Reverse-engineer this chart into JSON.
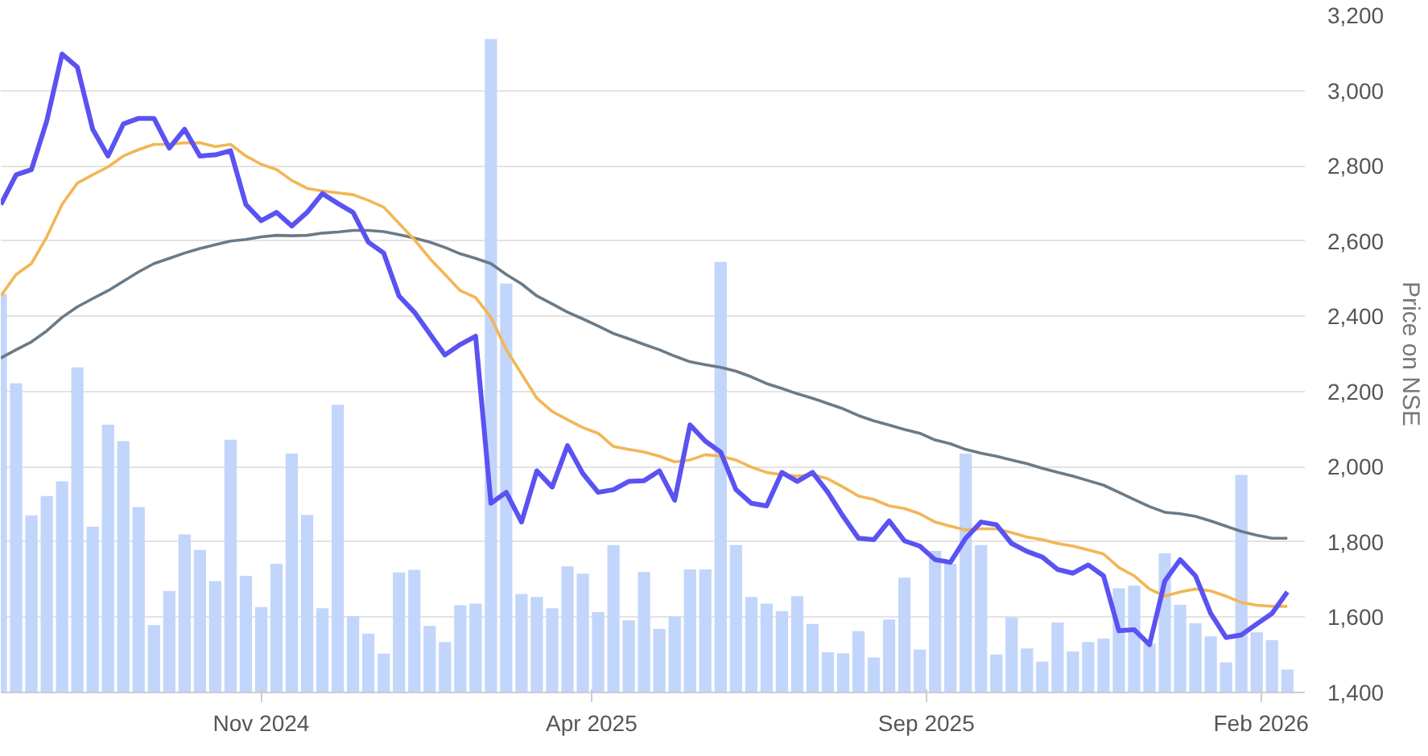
{
  "chart_data": {
    "type": "line",
    "ylabel": "Price on NSE",
    "grid": "y",
    "marker": "none",
    "xlim": [
      "2024-07-05",
      "2026-02-21"
    ],
    "xticks": [
      {
        "value": "2024-11-01",
        "label": "Nov 2024"
      },
      {
        "value": "2025-04-01",
        "label": "Apr 2025"
      },
      {
        "value": "2025-09-01",
        "label": "Sep 2025"
      },
      {
        "value": "2026-02-01",
        "label": "Feb 2026"
      }
    ],
    "ylim": [
      1400,
      3200
    ],
    "yticks": [
      {
        "value": 1400,
        "label": "1,400"
      },
      {
        "value": 1600,
        "label": "1,600"
      },
      {
        "value": 1800,
        "label": "1,800"
      },
      {
        "value": 2000,
        "label": "2,000"
      },
      {
        "value": 2200,
        "label": "2,200"
      },
      {
        "value": 2400,
        "label": "2,400"
      },
      {
        "value": 2600,
        "label": "2,600"
      },
      {
        "value": 2800,
        "label": "2,800"
      },
      {
        "value": 3000,
        "label": "3,000"
      },
      {
        "value": 3200,
        "label": "3,200"
      }
    ],
    "x": [
      "2024-07-05",
      "2024-07-12",
      "2024-07-19",
      "2024-07-26",
      "2024-08-02",
      "2024-08-09",
      "2024-08-16",
      "2024-08-23",
      "2024-08-30",
      "2024-09-06",
      "2024-09-13",
      "2024-09-20",
      "2024-09-27",
      "2024-10-04",
      "2024-10-11",
      "2024-10-18",
      "2024-10-25",
      "2024-11-01",
      "2024-11-08",
      "2024-11-15",
      "2024-11-22",
      "2024-11-29",
      "2024-12-06",
      "2024-12-13",
      "2024-12-20",
      "2024-12-27",
      "2025-01-03",
      "2025-01-10",
      "2025-01-17",
      "2025-01-24",
      "2025-01-31",
      "2025-02-07",
      "2025-02-14",
      "2025-02-21",
      "2025-02-28",
      "2025-03-07",
      "2025-03-14",
      "2025-03-21",
      "2025-03-28",
      "2025-04-04",
      "2025-04-11",
      "2025-04-18",
      "2025-04-25",
      "2025-05-02",
      "2025-05-09",
      "2025-05-16",
      "2025-05-23",
      "2025-05-30",
      "2025-06-06",
      "2025-06-13",
      "2025-06-20",
      "2025-06-27",
      "2025-07-04",
      "2025-07-11",
      "2025-07-18",
      "2025-07-25",
      "2025-08-01",
      "2025-08-08",
      "2025-08-15",
      "2025-08-22",
      "2025-08-29",
      "2025-09-05",
      "2025-09-12",
      "2025-09-19",
      "2025-09-26",
      "2025-10-03",
      "2025-10-10",
      "2025-10-17",
      "2025-10-24",
      "2025-10-31",
      "2025-11-07",
      "2025-11-14",
      "2025-11-21",
      "2025-11-28",
      "2025-12-05",
      "2025-12-12",
      "2025-12-19",
      "2025-12-26",
      "2026-01-02",
      "2026-01-09",
      "2026-01-16",
      "2026-01-23",
      "2026-01-30",
      "2026-02-06",
      "2026-02-13"
    ],
    "series": [
      {
        "type": "bar",
        "color": "#c2d5fb",
        "values": [
          2460,
          2222,
          1871,
          1922,
          1961,
          2264,
          1841,
          2112,
          2068,
          1893,
          1579,
          1670,
          1820,
          1779,
          1696,
          2072,
          1710,
          1627,
          1742,
          2035,
          1872,
          1624,
          2165,
          1603,
          1556,
          1503,
          1719,
          1726,
          1577,
          1534,
          1632,
          1636,
          3137,
          2487,
          1662,
          1654,
          1624,
          1735,
          1716,
          1614,
          1792,
          1592,
          1720,
          1569,
          1602,
          1727,
          1727,
          2544,
          1792,
          1654,
          1636,
          1616,
          1656,
          1582,
          1507,
          1504,
          1563,
          1493,
          1594,
          1705,
          1514,
          1776,
          1742,
          2035,
          1792,
          1501,
          1599,
          1517,
          1482,
          1586,
          1509,
          1534,
          1543,
          1677,
          1684,
          1530,
          1770,
          1633,
          1584,
          1549,
          1480,
          1978,
          1560,
          1539,
          1461
        ]
      },
      {
        "color": "#6b7a87",
        "values": [
          2289,
          2311,
          2332,
          2361,
          2397,
          2425,
          2447,
          2468,
          2493,
          2518,
          2540,
          2554,
          2568,
          2580,
          2590,
          2600,
          2604,
          2611,
          2615,
          2614,
          2615,
          2621,
          2624,
          2628,
          2628,
          2625,
          2617,
          2608,
          2597,
          2583,
          2566,
          2554,
          2540,
          2511,
          2486,
          2454,
          2433,
          2411,
          2393,
          2374,
          2354,
          2340,
          2325,
          2311,
          2294,
          2279,
          2271,
          2264,
          2254,
          2239,
          2221,
          2208,
          2194,
          2182,
          2168,
          2154,
          2136,
          2122,
          2111,
          2099,
          2089,
          2071,
          2061,
          2046,
          2036,
          2028,
          2018,
          2008,
          1996,
          1985,
          1975,
          1963,
          1951,
          1932,
          1913,
          1894,
          1879,
          1875,
          1868,
          1856,
          1842,
          1828,
          1818,
          1810,
          1810
        ]
      },
      {
        "color": "#f2b654",
        "values": [
          2454,
          2511,
          2540,
          2611,
          2697,
          2754,
          2776,
          2797,
          2826,
          2843,
          2857,
          2857,
          2861,
          2861,
          2851,
          2857,
          2826,
          2804,
          2790,
          2761,
          2740,
          2733,
          2728,
          2723,
          2708,
          2690,
          2647,
          2604,
          2554,
          2511,
          2468,
          2450,
          2397,
          2311,
          2247,
          2182,
          2147,
          2125,
          2104,
          2089,
          2054,
          2046,
          2039,
          2028,
          2013,
          2018,
          2032,
          2028,
          2018,
          1999,
          1985,
          1979,
          1975,
          1979,
          1968,
          1946,
          1922,
          1913,
          1896,
          1889,
          1875,
          1853,
          1842,
          1832,
          1835,
          1835,
          1825,
          1813,
          1806,
          1796,
          1789,
          1779,
          1768,
          1732,
          1710,
          1675,
          1656,
          1667,
          1675,
          1670,
          1656,
          1639,
          1632,
          1629,
          1629
        ]
      },
      {
        "color": "#5b52f2",
        "values": [
          2697,
          2776,
          2790,
          2919,
          3097,
          3062,
          2897,
          2826,
          2911,
          2926,
          2926,
          2847,
          2897,
          2826,
          2829,
          2840,
          2697,
          2654,
          2676,
          2640,
          2676,
          2726,
          2700,
          2676,
          2597,
          2568,
          2454,
          2411,
          2354,
          2297,
          2325,
          2347,
          1903,
          1932,
          1853,
          1989,
          1946,
          2056,
          1982,
          1932,
          1939,
          1961,
          1963,
          1989,
          1911,
          2111,
          2068,
          2039,
          1939,
          1903,
          1896,
          1985,
          1961,
          1985,
          1932,
          1868,
          1810,
          1806,
          1856,
          1803,
          1789,
          1753,
          1746,
          1810,
          1853,
          1846,
          1796,
          1775,
          1760,
          1727,
          1717,
          1739,
          1710,
          1564,
          1567,
          1527,
          1696,
          1753,
          1710,
          1610,
          1546,
          1553,
          1582,
          1610,
          1667
        ]
      }
    ]
  }
}
